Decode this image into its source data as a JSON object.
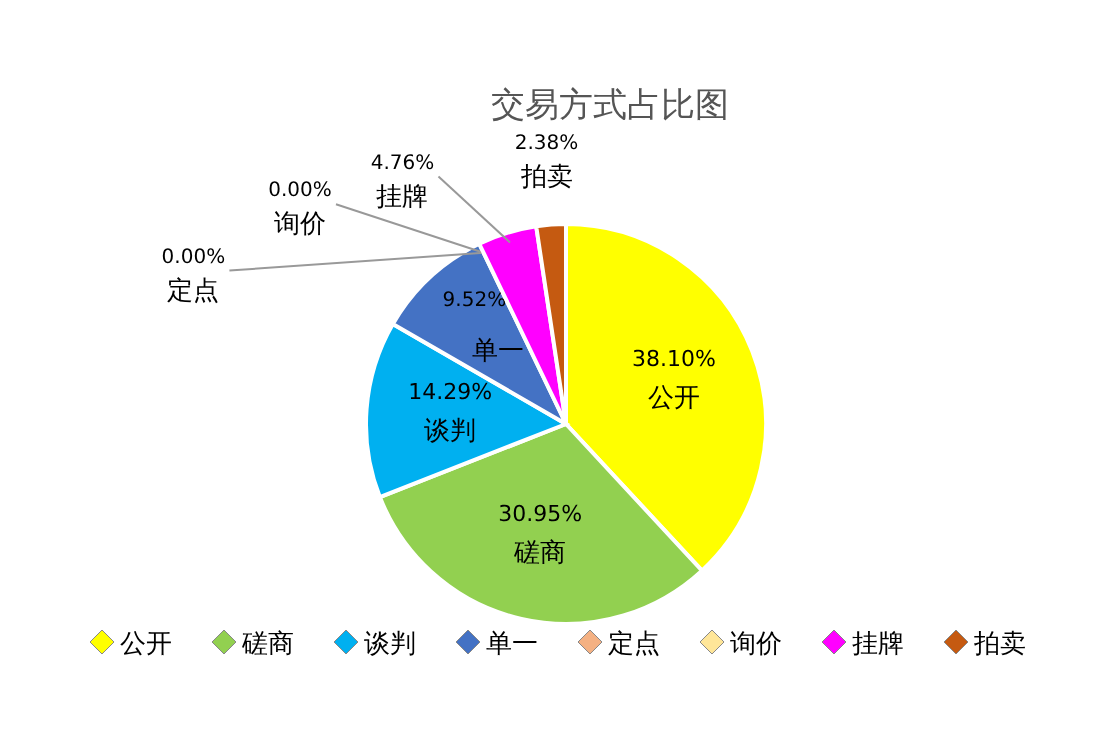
{
  "chart_data": {
    "type": "pie",
    "title": "交易方式占比图",
    "categories": [
      "公开",
      "磋商",
      "谈判",
      "单一",
      "定点",
      "询价",
      "挂牌",
      "拍卖"
    ],
    "values": [
      38.1,
      30.95,
      14.29,
      9.52,
      0.0,
      0.0,
      4.76,
      2.38
    ],
    "colors": [
      "#ffff00",
      "#92d050",
      "#00b0f0",
      "#4472c4",
      "#f4b183",
      "#ffe699",
      "#ff00ff",
      "#c55a11"
    ],
    "value_labels": [
      "38.10%",
      "30.95%",
      "14.29%",
      "9.52%",
      "0.00%",
      "0.00%",
      "4.76%",
      "2.38%"
    ],
    "legend": "bottom"
  }
}
